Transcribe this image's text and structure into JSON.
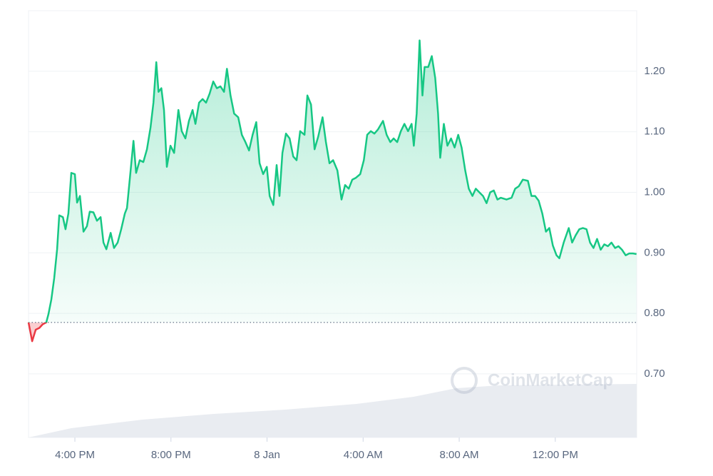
{
  "chart_data": {
    "type": "line",
    "watermark": "CoinMarketCap",
    "baseline": 0.785,
    "up_color": "#16c784",
    "down_color": "#ea3943",
    "grid": true,
    "xlim": [
      14.07,
      39.39
    ],
    "ylim": [
      0.595,
      1.3
    ],
    "xticks": [
      {
        "value": 16,
        "label": "4:00 PM"
      },
      {
        "value": 20,
        "label": "8:00 PM"
      },
      {
        "value": 24,
        "label": "8 Jan"
      },
      {
        "value": 28,
        "label": "4:00 AM"
      },
      {
        "value": 32,
        "label": "8:00 AM"
      },
      {
        "value": 36,
        "label": "12:00 PM"
      }
    ],
    "yticks": [
      {
        "value": 0.7,
        "label": "0.70"
      },
      {
        "value": 0.8,
        "label": "0.80"
      },
      {
        "value": 0.9,
        "label": "0.90"
      },
      {
        "value": 1.0,
        "label": "1.00"
      },
      {
        "value": 1.1,
        "label": "1.10"
      },
      {
        "value": 1.2,
        "label": "1.20"
      }
    ],
    "x": [
      14.07,
      14.22,
      14.37,
      14.52,
      14.66,
      14.81,
      14.9,
      15.02,
      15.14,
      15.26,
      15.35,
      15.5,
      15.61,
      15.73,
      15.85,
      16.0,
      16.09,
      16.21,
      16.36,
      16.5,
      16.62,
      16.77,
      16.92,
      17.07,
      17.19,
      17.31,
      17.49,
      17.63,
      17.78,
      17.93,
      18.08,
      18.17,
      18.29,
      18.44,
      18.55,
      18.7,
      18.85,
      19.0,
      19.15,
      19.27,
      19.39,
      19.48,
      19.6,
      19.71,
      19.83,
      19.98,
      20.13,
      20.31,
      20.45,
      20.6,
      20.75,
      20.9,
      21.02,
      21.17,
      21.32,
      21.46,
      21.61,
      21.76,
      21.91,
      22.06,
      22.21,
      22.33,
      22.48,
      22.63,
      22.8,
      22.95,
      23.1,
      23.25,
      23.4,
      23.55,
      23.69,
      23.84,
      23.99,
      24.11,
      24.26,
      24.4,
      24.52,
      24.64,
      24.79,
      24.94,
      25.09,
      25.23,
      25.38,
      25.56,
      25.68,
      25.83,
      25.98,
      26.13,
      26.31,
      26.45,
      26.6,
      26.75,
      26.93,
      27.1,
      27.25,
      27.4,
      27.55,
      27.7,
      27.88,
      28.03,
      28.17,
      28.32,
      28.47,
      28.62,
      28.83,
      28.98,
      29.13,
      29.27,
      29.42,
      29.57,
      29.72,
      29.87,
      30.02,
      30.11,
      30.23,
      30.35,
      30.47,
      30.56,
      30.71,
      30.86,
      31.0,
      31.12,
      31.21,
      31.36,
      31.51,
      31.66,
      31.81,
      31.96,
      32.1,
      32.25,
      32.4,
      32.55,
      32.69,
      32.84,
      32.99,
      33.14,
      33.29,
      33.44,
      33.59,
      33.73,
      33.97,
      34.18,
      34.33,
      34.48,
      34.65,
      34.86,
      35.01,
      35.16,
      35.31,
      35.46,
      35.61,
      35.75,
      35.9,
      36.05,
      36.17,
      36.35,
      36.56,
      36.7,
      36.85,
      37.0,
      37.15,
      37.3,
      37.45,
      37.59,
      37.74,
      37.89,
      38.04,
      38.19,
      38.34,
      38.49,
      38.63,
      38.78,
      38.93,
      39.08,
      39.23,
      39.38
    ],
    "values": [
      0.785,
      0.754,
      0.773,
      0.776,
      0.782,
      0.785,
      0.799,
      0.823,
      0.858,
      0.906,
      0.962,
      0.959,
      0.939,
      0.965,
      1.032,
      1.03,
      0.983,
      0.994,
      0.935,
      0.944,
      0.968,
      0.967,
      0.953,
      0.959,
      0.917,
      0.906,
      0.933,
      0.908,
      0.917,
      0.939,
      0.965,
      0.974,
      1.024,
      1.085,
      1.032,
      1.053,
      1.05,
      1.071,
      1.107,
      1.148,
      1.215,
      1.166,
      1.172,
      1.136,
      1.042,
      1.077,
      1.065,
      1.136,
      1.101,
      1.089,
      1.118,
      1.136,
      1.113,
      1.148,
      1.154,
      1.148,
      1.163,
      1.183,
      1.172,
      1.175,
      1.166,
      1.204,
      1.16,
      1.13,
      1.124,
      1.095,
      1.083,
      1.069,
      1.095,
      1.116,
      1.048,
      1.03,
      1.042,
      0.994,
      0.979,
      1.045,
      0.994,
      1.065,
      1.097,
      1.089,
      1.059,
      1.053,
      1.101,
      1.095,
      1.16,
      1.145,
      1.071,
      1.092,
      1.124,
      1.083,
      1.048,
      1.053,
      1.036,
      0.988,
      1.012,
      1.006,
      1.021,
      1.024,
      1.03,
      1.053,
      1.095,
      1.101,
      1.097,
      1.104,
      1.118,
      1.095,
      1.083,
      1.089,
      1.083,
      1.101,
      1.113,
      1.101,
      1.113,
      1.077,
      1.13,
      1.251,
      1.16,
      1.207,
      1.207,
      1.225,
      1.189,
      1.13,
      1.057,
      1.113,
      1.077,
      1.089,
      1.074,
      1.095,
      1.074,
      1.036,
      1.006,
      0.994,
      1.006,
      1.0,
      0.994,
      0.982,
      1.0,
      1.003,
      0.988,
      0.991,
      0.988,
      0.991,
      1.006,
      1.01,
      1.021,
      1.019,
      0.994,
      0.994,
      0.986,
      0.965,
      0.935,
      0.941,
      0.912,
      0.896,
      0.891,
      0.917,
      0.941,
      0.917,
      0.929,
      0.939,
      0.941,
      0.939,
      0.917,
      0.908,
      0.923,
      0.905,
      0.914,
      0.911,
      0.917,
      0.908,
      0.911,
      0.905,
      0.896,
      0.899,
      0.899,
      0.898
    ]
  }
}
